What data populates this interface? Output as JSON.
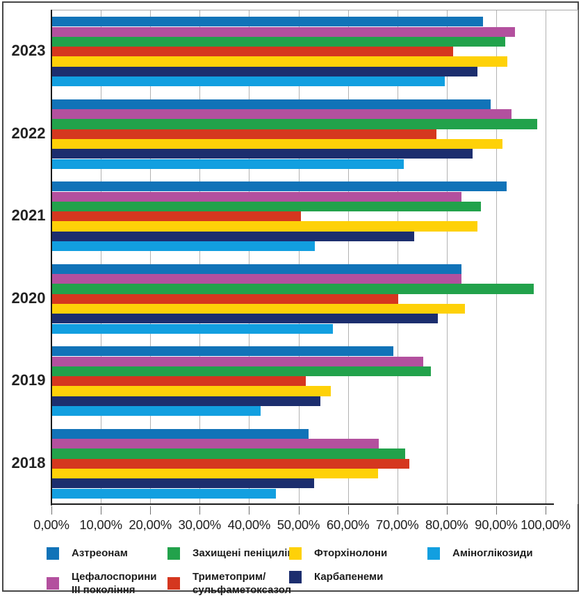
{
  "chart_data": {
    "type": "bar",
    "orientation": "horizontal",
    "title": "",
    "xlabel": "",
    "ylabel": "",
    "xlim": [
      0,
      100
    ],
    "grid": true,
    "legend_position": "bottom",
    "categories": [
      "2023",
      "2022",
      "2021",
      "2020",
      "2019",
      "2018"
    ],
    "x_tick_labels": [
      "0,00%",
      "10,00%",
      "20,00%",
      "30,00%",
      "40,00%",
      "50,00%",
      "60,00%",
      "70,00%",
      "80,00%",
      "90,00%",
      "100,00%"
    ],
    "series": [
      {
        "name": "Азтреонам",
        "color": "#1173b8",
        "values": [
          87.2,
          88.7,
          92.0,
          82.8,
          69.0,
          51.9
        ]
      },
      {
        "name": "Цефалоспорини III покоління",
        "color": "#b3509e",
        "values": [
          93.6,
          92.9,
          82.9,
          82.9,
          75.1,
          66.1
        ]
      },
      {
        "name": "Захищені пеніциліни",
        "color": "#22a24b",
        "values": [
          91.7,
          98.2,
          86.8,
          97.5,
          76.7,
          71.4
        ]
      },
      {
        "name": "Триметоприм/сульфаметоксазол",
        "color": "#d5371f",
        "values": [
          81.1,
          77.8,
          50.3,
          70.0,
          51.3,
          72.3
        ]
      },
      {
        "name": "Фторхінолони",
        "color": "#fed108",
        "values": [
          92.1,
          91.2,
          86.1,
          83.5,
          56.4,
          65.9
        ]
      },
      {
        "name": "Карбапенеми",
        "color": "#1c2e6e",
        "values": [
          86.0,
          85.1,
          73.3,
          78.0,
          54.3,
          53.0
        ]
      },
      {
        "name": "Аміноглікозиди",
        "color": "#129fe0",
        "values": [
          79.5,
          71.2,
          53.1,
          56.8,
          42.2,
          45.3
        ]
      }
    ]
  },
  "legend": {
    "rows": [
      [
        {
          "series": 0,
          "label": "Азтреонам"
        },
        {
          "series": 2,
          "label": "Захищені пеніциліни"
        },
        {
          "series": 4,
          "label": "Фторхінолони"
        },
        {
          "series": 6,
          "label": "Аміноглікозиди"
        }
      ],
      [
        {
          "series": 1,
          "label": "Цефалоспорини\nIII покоління"
        },
        {
          "series": 3,
          "label": "Триметоприм/\nсульфаметоксазол"
        },
        {
          "series": 5,
          "label": "Карбапенеми"
        }
      ]
    ]
  },
  "colors": {
    "gridline": "#b2b2b2",
    "axis": "#1a1a1a",
    "frame": "#474747",
    "text": "#1f1f1f"
  }
}
